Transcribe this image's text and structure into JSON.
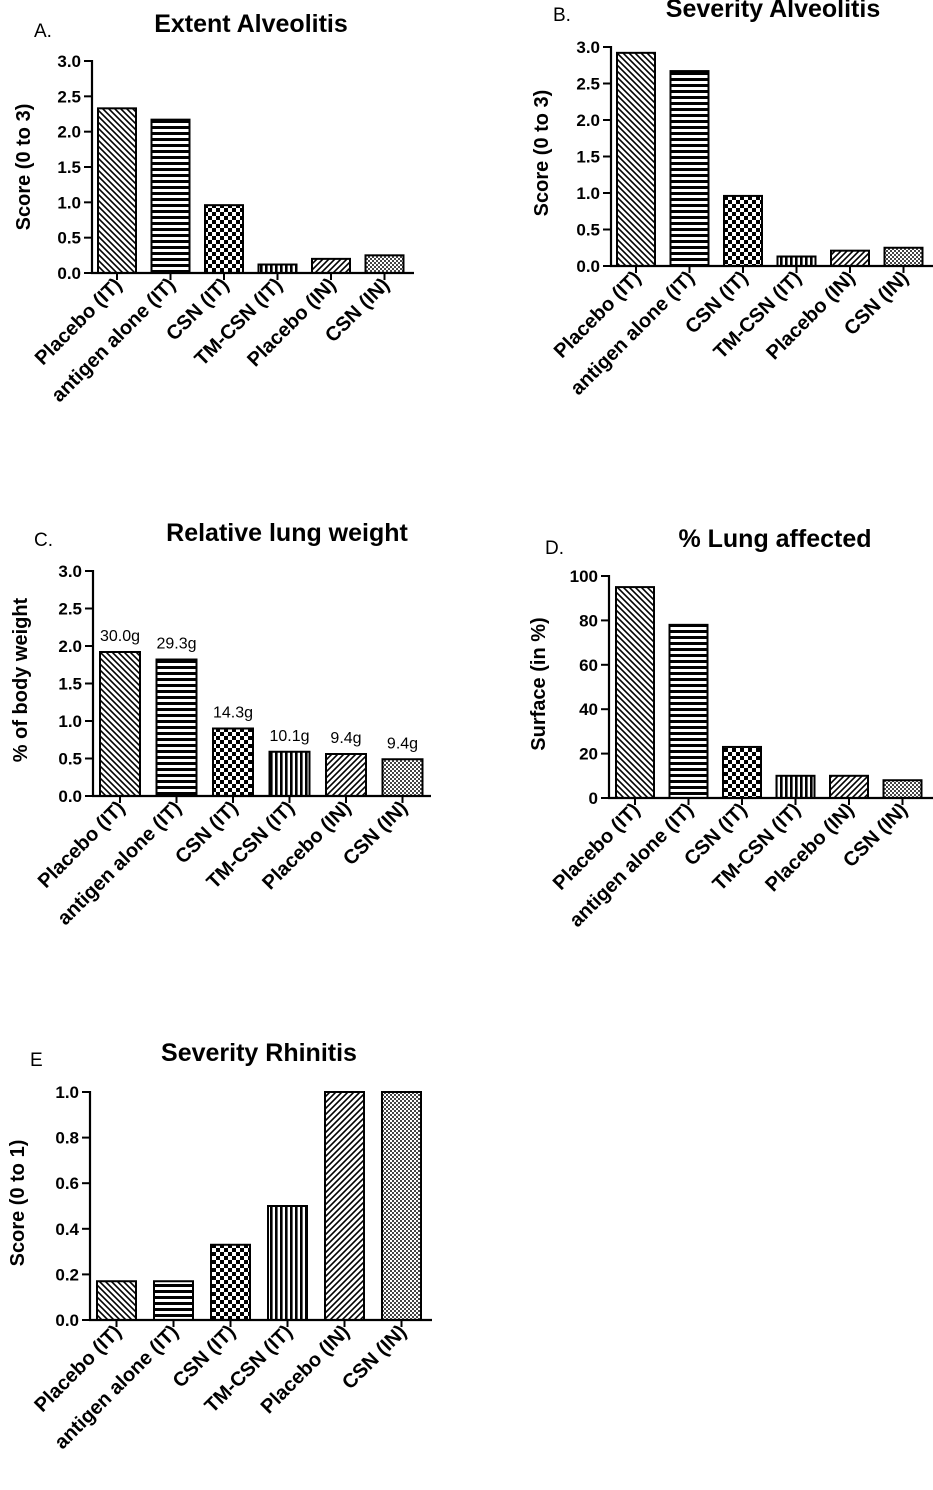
{
  "chart_data": [
    {
      "panel": "A.",
      "type": "bar",
      "title": "Extent Alveolitis",
      "ylabel": "Score (0 to 3)",
      "xlabel": "",
      "ylim": [
        0,
        3
      ],
      "yticks": [
        "0.0",
        "0.5",
        "1.0",
        "1.5",
        "2.0",
        "2.5",
        "3.0"
      ],
      "categories": [
        "Placebo (IT)",
        "antigen alone (IT)",
        "CSN (IT)",
        "TM-CSN (IT)",
        "Placebo (IN)",
        "CSN (IN)"
      ],
      "values": [
        2.33,
        2.17,
        0.96,
        0.12,
        0.2,
        0.25
      ],
      "patterns": [
        "diag-back",
        "horizontal",
        "checker",
        "vertical",
        "diag-fwd",
        "fine-checker"
      ]
    },
    {
      "panel": "B.",
      "type": "bar",
      "title": "Severity Alveolitis",
      "ylabel": "Score (0 to 3)",
      "xlabel": "",
      "ylim": [
        0,
        3
      ],
      "yticks": [
        "0.0",
        "0.5",
        "1.0",
        "1.5",
        "2.0",
        "2.5",
        "3.0"
      ],
      "categories": [
        "Placebo (IT)",
        "antigen alone (IT)",
        "CSN (IT)",
        "TM-CSN (IT)",
        "Placebo (IN)",
        "CSN (IN)"
      ],
      "values": [
        2.92,
        2.67,
        0.96,
        0.13,
        0.21,
        0.25
      ],
      "patterns": [
        "diag-back",
        "horizontal",
        "checker",
        "vertical",
        "diag-fwd",
        "fine-checker"
      ]
    },
    {
      "panel": "C.",
      "type": "bar",
      "title": "Relative lung weight",
      "ylabel": "% of body weight",
      "xlabel": "",
      "ylim": [
        0,
        3
      ],
      "yticks": [
        "0.0",
        "0.5",
        "1.0",
        "1.5",
        "2.0",
        "2.5",
        "3.0"
      ],
      "categories": [
        "Placebo (IT)",
        "antigen alone (IT)",
        "CSN (IT)",
        "TM-CSN (IT)",
        "Placebo (IN)",
        "CSN (IN)"
      ],
      "values": [
        1.92,
        1.82,
        0.9,
        0.59,
        0.56,
        0.49
      ],
      "data_labels": [
        "30.0g",
        "29.3g",
        "14.3g",
        "10.1g",
        "9.4g",
        "9.4g"
      ],
      "patterns": [
        "diag-back",
        "horizontal",
        "checker",
        "vertical",
        "diag-fwd",
        "fine-checker"
      ]
    },
    {
      "panel": "D.",
      "type": "bar",
      "title": "% Lung affected",
      "ylabel": "Surface (in %)",
      "xlabel": "",
      "ylim": [
        0,
        100
      ],
      "yticks": [
        "0",
        "20",
        "40",
        "60",
        "80",
        "100"
      ],
      "categories": [
        "Placebo (IT)",
        "antigen alone (IT)",
        "CSN (IT)",
        "TM-CSN (IT)",
        "Placebo (IN)",
        "CSN (IN)"
      ],
      "values": [
        95,
        78,
        23,
        10,
        10,
        8
      ],
      "patterns": [
        "diag-back",
        "horizontal",
        "checker",
        "vertical",
        "diag-fwd",
        "fine-checker"
      ]
    },
    {
      "panel": "E",
      "type": "bar",
      "title": "Severity Rhinitis",
      "ylabel": "Score (0 to 1)",
      "xlabel": "",
      "ylim": [
        0,
        1
      ],
      "yticks": [
        "0.0",
        "0.2",
        "0.4",
        "0.6",
        "0.8",
        "1.0"
      ],
      "categories": [
        "Placebo (IT)",
        "antigen alone (IT)",
        "CSN (IT)",
        "TM-CSN (IT)",
        "Placebo (IN)",
        "CSN (IN)"
      ],
      "values": [
        0.17,
        0.17,
        0.33,
        0.5,
        1.0,
        1.0
      ],
      "patterns": [
        "diag-back",
        "horizontal",
        "checker",
        "vertical",
        "diag-fwd",
        "fine-checker"
      ]
    }
  ]
}
